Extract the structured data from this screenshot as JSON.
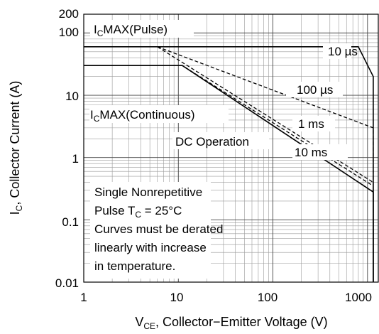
{
  "chart_data": {
    "type": "line",
    "xscale": "log",
    "yscale": "log",
    "xlim": [
      1,
      1300
    ],
    "ylim": [
      0.01,
      200
    ],
    "x_ticks": [
      "1",
      "10",
      "100",
      "1000"
    ],
    "y_ticks": [
      "0.01",
      "0.1",
      "1",
      "10",
      "100",
      "200"
    ],
    "xlabel": {
      "pre": "V",
      "sub": "CE",
      "post": ", Collector−Emitter Voltage (V)"
    },
    "ylabel": {
      "pre": "I",
      "sub": "C",
      "post": ", Collector Current (A)"
    },
    "series": [
      {
        "name": "10 µs",
        "dash": "solid",
        "points": [
          [
            1,
            60
          ],
          [
            800,
            60
          ],
          [
            1150,
            20
          ],
          [
            1150,
            0.01
          ]
        ]
      },
      {
        "name": "100 µs",
        "dash": "dashed",
        "points": [
          [
            1,
            60
          ],
          [
            6,
            60
          ],
          [
            1150,
            3
          ],
          [
            1150,
            0.01
          ]
        ]
      },
      {
        "name": "1 ms",
        "dash": "dashed",
        "points": [
          [
            1,
            60
          ],
          [
            6,
            60
          ],
          [
            1150,
            0.4
          ],
          [
            1150,
            0.01
          ]
        ]
      },
      {
        "name": "10 ms",
        "dash": "dashed",
        "points": [
          [
            1,
            30
          ],
          [
            11,
            30
          ],
          [
            1150,
            0.35
          ],
          [
            1150,
            0.01
          ]
        ]
      },
      {
        "name": "DC Operation",
        "dash": "solid",
        "points": [
          [
            1,
            30
          ],
          [
            11,
            30
          ],
          [
            1150,
            0.28
          ],
          [
            1150,
            0.01
          ]
        ]
      }
    ],
    "annotations": {
      "pulse": {
        "pre": "I",
        "sub": "C",
        "post": "MAX(Pulse)"
      },
      "continuous": {
        "pre": "I",
        "sub": "C",
        "post": "MAX(Continuous)"
      },
      "label_10us": "10 µs",
      "label_100us": "100 µs",
      "label_1ms": "1 ms",
      "label_10ms": "10 ms",
      "label_dc": "DC Operation",
      "note_line1": "Single Nonrepetitive",
      "note_line2_pre": "Pulse T",
      "note_line2_sub": "C",
      "note_line2_post": " = 25°C",
      "note_line3": "Curves must be derated",
      "note_line4": "linearly with increase",
      "note_line5": "in temperature."
    }
  }
}
